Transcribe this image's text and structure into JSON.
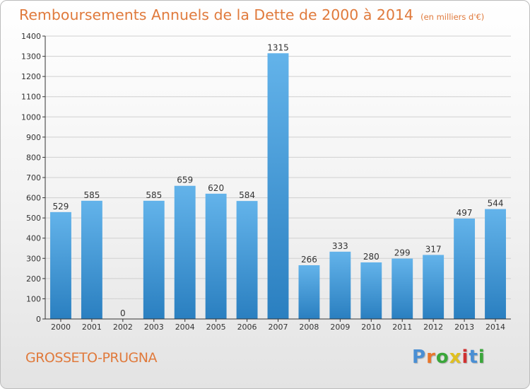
{
  "title": "Remboursements Annuels de la Dette de 2000 à 2014",
  "subtitle": "(en milliers d'€)",
  "commune": "GROSSETO-PRUGNA",
  "logo": {
    "text": "Proxiti",
    "colors": [
      "#4a8fd4",
      "#e8762b",
      "#3aa63a",
      "#e0c020",
      "#d03030",
      "#4a8fd4",
      "#3aa63a"
    ]
  },
  "colors": {
    "bar_top": "#63b3ea",
    "bar_bottom": "#2a7fc0",
    "grid": "#d0d0d0",
    "axis": "#333333",
    "label": "#333333",
    "title": "#e07a3c"
  },
  "chart_data": {
    "type": "bar",
    "title": "Remboursements Annuels de la Dette de 2000 à 2014",
    "subtitle": "(en milliers d'€)",
    "categories": [
      "2000",
      "2001",
      "2002",
      "2003",
      "2004",
      "2005",
      "2006",
      "2007",
      "2008",
      "2009",
      "2010",
      "2011",
      "2012",
      "2013",
      "2014"
    ],
    "values": [
      529,
      585,
      0,
      585,
      659,
      620,
      584,
      1315,
      266,
      333,
      280,
      299,
      317,
      497,
      544
    ],
    "data_labels": [
      "529",
      "585",
      "0",
      "585",
      "659",
      "620",
      "584",
      "1315",
      "266",
      "333",
      "280",
      "299",
      "317",
      "497",
      "544"
    ],
    "yticks": [
      "0",
      "100",
      "200",
      "300",
      "400",
      "500",
      "600",
      "700",
      "800",
      "900",
      "1000",
      "1100",
      "1200",
      "1300",
      "1400"
    ],
    "ylim": [
      0,
      1400
    ],
    "ystep": 100,
    "grid": true,
    "legend": "none"
  }
}
